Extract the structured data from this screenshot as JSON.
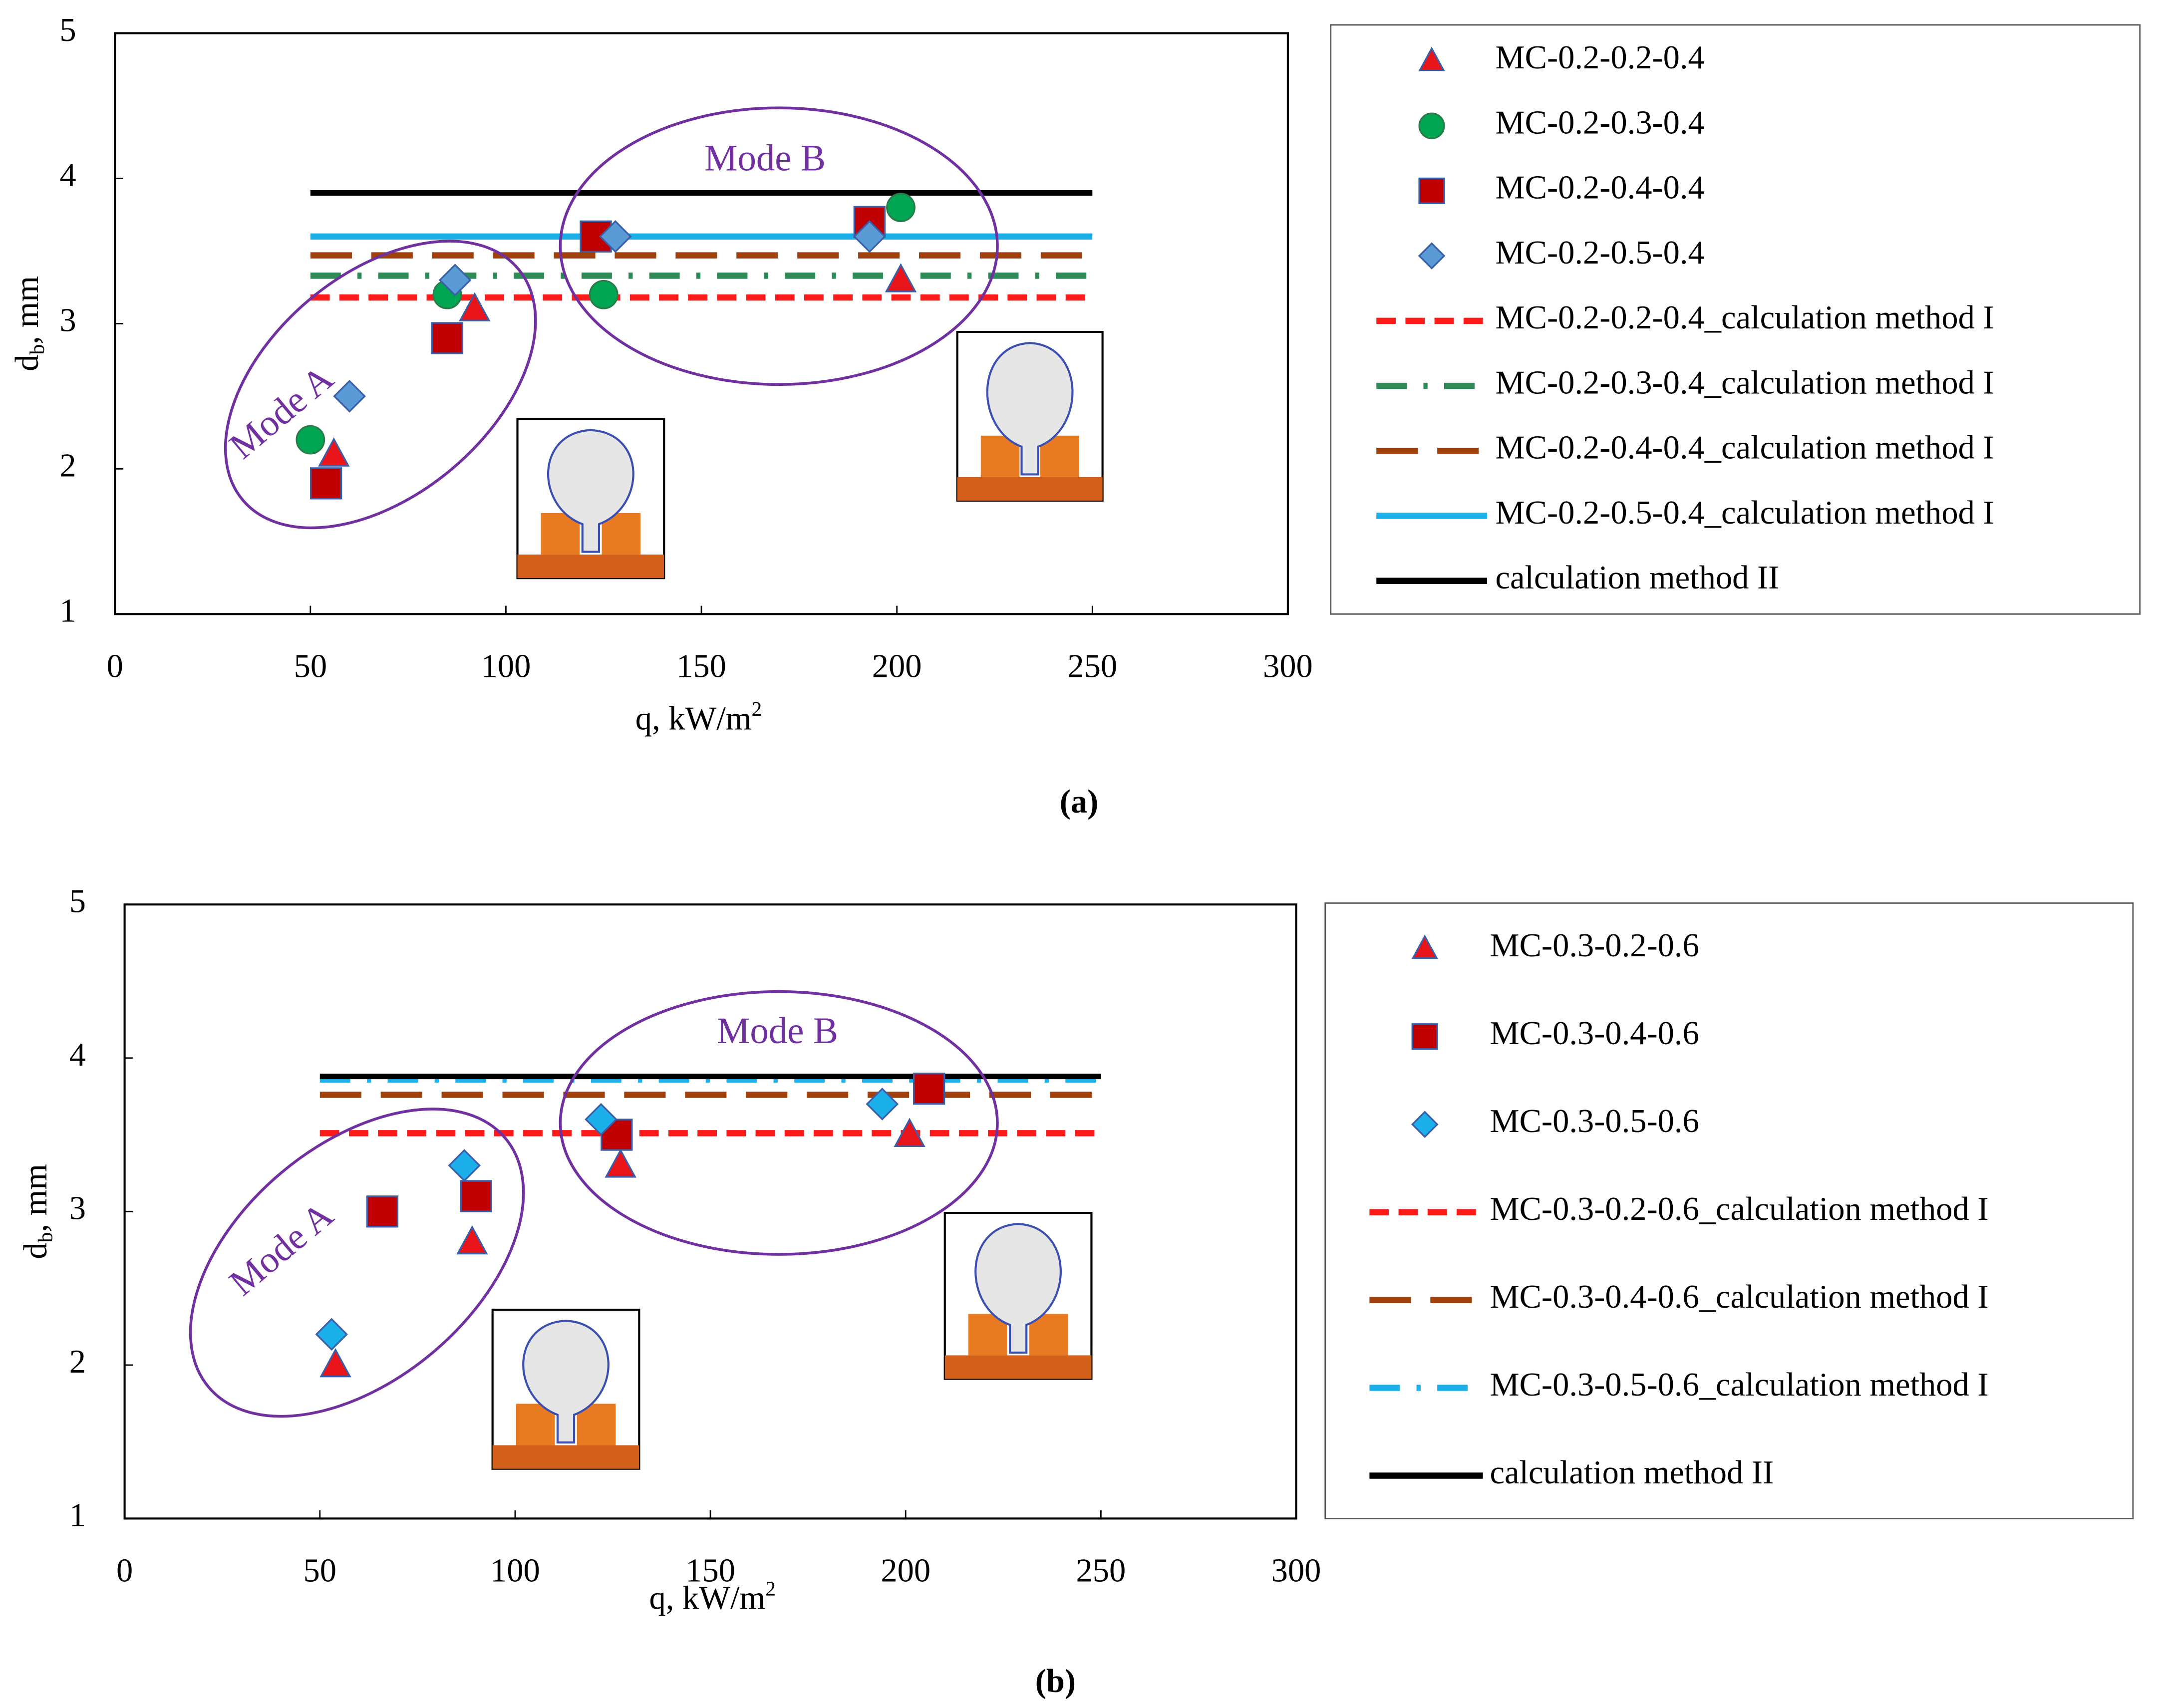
{
  "chart_data": [
    {
      "type": "scatter",
      "caption": "(a)",
      "xlabel": {
        "main": "q, kW/m",
        "sup": "2"
      },
      "ylabel": {
        "main": "d",
        "sub": "b",
        "rest": ", mm"
      },
      "xlim": [
        0,
        300
      ],
      "xticks": [
        0,
        50,
        100,
        150,
        200,
        250,
        300
      ],
      "ylim": [
        1,
        5
      ],
      "yticks": [
        1,
        2,
        3,
        4,
        5
      ],
      "annotations": [
        "Mode A",
        "Mode B"
      ],
      "series": [
        {
          "name": "MC-0.2-0.2-0.4",
          "marker": "triangle",
          "color": "#e8141a",
          "x": [
            56,
            92,
            201
          ],
          "values": [
            2.1,
            3.1,
            3.3
          ]
        },
        {
          "name": "MC-0.2-0.3-0.4",
          "marker": "circle",
          "color": "#00a651",
          "x": [
            50,
            85,
            125,
            201
          ],
          "values": [
            2.2,
            3.2,
            3.2,
            3.8
          ]
        },
        {
          "name": "MC-0.2-0.4-0.4",
          "marker": "square",
          "color": "#c00000",
          "x": [
            54,
            85,
            123,
            193
          ],
          "values": [
            1.9,
            2.9,
            3.6,
            3.7
          ]
        },
        {
          "name": "MC-0.2-0.5-0.4",
          "marker": "diamond",
          "color": "#5b9bd5",
          "x": [
            60,
            87,
            128,
            193
          ],
          "values": [
            2.5,
            3.3,
            3.6,
            3.6
          ]
        },
        {
          "name": "MC-0.2-0.2-0.4_calculation method I",
          "line": "dash",
          "color": "#ff1a1a",
          "x": [
            50,
            250
          ],
          "values": [
            3.18,
            3.18
          ]
        },
        {
          "name": "MC-0.2-0.3-0.4_calculation method I",
          "line": "dashdot",
          "color": "#2e8b57",
          "x": [
            50,
            250
          ],
          "values": [
            3.33,
            3.33
          ]
        },
        {
          "name": "MC-0.2-0.4-0.4_calculation method I",
          "line": "longdash",
          "color": "#a0400a",
          "x": [
            50,
            250
          ],
          "values": [
            3.47,
            3.47
          ]
        },
        {
          "name": "MC-0.2-0.5-0.4_calculation method I",
          "line": "solid",
          "color": "#1cb0ea",
          "x": [
            50,
            250
          ],
          "values": [
            3.6,
            3.6
          ]
        },
        {
          "name": "calculation method II",
          "line": "solid",
          "color": "#000000",
          "x": [
            50,
            250
          ],
          "values": [
            3.9,
            3.9
          ]
        }
      ]
    },
    {
      "type": "scatter",
      "caption": "(b)",
      "xlabel": {
        "main": "q, kW/m",
        "sup": "2"
      },
      "ylabel": {
        "main": "d",
        "sub": "b",
        "rest": ", mm"
      },
      "xlim": [
        0,
        300
      ],
      "xticks": [
        0,
        50,
        100,
        150,
        200,
        250,
        300
      ],
      "ylim": [
        1,
        5
      ],
      "yticks": [
        1,
        2,
        3,
        4,
        5
      ],
      "annotations": [
        "Mode A",
        "Mode B"
      ],
      "series": [
        {
          "name": "MC-0.3-0.2-0.6",
          "marker": "triangle",
          "color": "#e8141a",
          "x": [
            54,
            89,
            127,
            201
          ],
          "values": [
            2.0,
            2.8,
            3.3,
            3.5
          ]
        },
        {
          "name": "MC-0.3-0.4-0.6",
          "marker": "square",
          "color": "#c00000",
          "x": [
            66,
            90,
            126,
            206
          ],
          "values": [
            3.0,
            3.1,
            3.5,
            3.8
          ]
        },
        {
          "name": "MC-0.3-0.5-0.6",
          "marker": "diamond",
          "color": "#1cb0ea",
          "x": [
            53,
            87,
            122,
            194
          ],
          "values": [
            2.2,
            3.3,
            3.6,
            3.7
          ]
        },
        {
          "name": "MC-0.3-0.2-0.6_calculation method I",
          "line": "dash",
          "color": "#ff1a1a",
          "x": [
            50,
            250
          ],
          "values": [
            3.51,
            3.51
          ]
        },
        {
          "name": "MC-0.3-0.4-0.6_calculation method I",
          "line": "longdash",
          "color": "#a0400a",
          "x": [
            50,
            250
          ],
          "values": [
            3.76,
            3.76
          ]
        },
        {
          "name": "MC-0.3-0.5-0.6_calculation method I",
          "line": "dashdot",
          "color": "#1cb0ea",
          "x": [
            50,
            250
          ],
          "values": [
            3.86,
            3.86
          ]
        },
        {
          "name": "calculation method II",
          "line": "solid",
          "color": "#000000",
          "x": [
            50,
            250
          ],
          "values": [
            3.88,
            3.88
          ]
        }
      ]
    }
  ]
}
